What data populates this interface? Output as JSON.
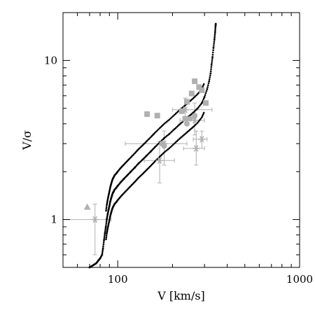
{
  "chart_data": {
    "type": "scatter",
    "title": "",
    "xlabel": "V [km/s]",
    "ylabel": "V/σ",
    "xscale": "log",
    "yscale": "log",
    "xlim": [
      50,
      1000
    ],
    "ylim": [
      0.5,
      20
    ],
    "grid": false,
    "legend": "none",
    "x_tick_labels": [
      {
        "value": 100,
        "label": "100"
      },
      {
        "value": 1000,
        "label": "1000"
      }
    ],
    "y_tick_labels": [
      {
        "value": 1,
        "label": "1"
      },
      {
        "value": 10,
        "label": "10"
      }
    ],
    "colors": {
      "model": "#000000",
      "observed": "#b0b0b0",
      "axes": "#000000"
    },
    "series": [
      {
        "kind": "model-band",
        "marker": "dot",
        "color": "#000000",
        "points": [
          [
            70,
            0.5
          ],
          [
            72,
            0.51
          ],
          [
            74,
            0.52
          ],
          [
            76,
            0.53
          ],
          [
            78,
            0.55
          ],
          [
            80,
            0.57
          ],
          [
            82,
            0.6
          ],
          [
            83,
            0.66
          ],
          [
            84,
            0.74
          ],
          [
            85,
            0.82
          ],
          [
            86,
            0.9
          ],
          [
            87,
            1.0
          ],
          [
            88,
            1.08
          ],
          [
            89,
            1.15
          ],
          [
            90,
            1.22
          ],
          [
            91,
            1.3
          ],
          [
            92,
            1.36
          ],
          [
            93,
            1.42
          ],
          [
            94,
            1.47
          ],
          [
            95,
            1.5
          ],
          [
            96,
            1.54
          ],
          [
            98,
            1.58
          ],
          [
            100,
            1.63
          ],
          [
            104,
            1.72
          ],
          [
            108,
            1.8
          ],
          [
            113,
            1.9
          ],
          [
            118,
            2.0
          ],
          [
            124,
            2.12
          ],
          [
            130,
            2.25
          ],
          [
            137,
            2.38
          ],
          [
            144,
            2.52
          ],
          [
            152,
            2.68
          ],
          [
            160,
            2.85
          ],
          [
            170,
            3.05
          ],
          [
            180,
            3.25
          ],
          [
            192,
            3.45
          ],
          [
            205,
            3.7
          ],
          [
            218,
            3.95
          ],
          [
            232,
            4.2
          ],
          [
            246,
            4.45
          ],
          [
            260,
            4.7
          ],
          [
            275,
            5.0
          ],
          [
            290,
            5.4
          ],
          [
            300,
            5.9
          ],
          [
            310,
            6.6
          ],
          [
            318,
            7.4
          ],
          [
            324,
            8.3
          ],
          [
            328,
            9.4
          ],
          [
            332,
            10.5
          ],
          [
            336,
            12.0
          ],
          [
            340,
            13.5
          ],
          [
            343,
            15.0
          ],
          [
            345,
            16.5
          ],
          [
            346,
            17.0
          ]
        ]
      },
      {
        "kind": "observed",
        "marker": "square",
        "color": "#b0b0b0",
        "points": [
          [
            145,
            4.6
          ],
          [
            165,
            4.5
          ],
          [
            240,
            5.5
          ],
          [
            255,
            6.2
          ],
          [
            265,
            7.4
          ],
          [
            280,
            6.8
          ],
          [
            290,
            6.5
          ],
          [
            305,
            5.4
          ],
          [
            225,
            4.8
          ],
          [
            235,
            4.3
          ]
        ]
      },
      {
        "kind": "observed",
        "marker": "triangle",
        "color": "#b0b0b0",
        "points": [
          [
            68,
            1.2
          ]
        ]
      },
      {
        "kind": "observed",
        "marker": "circle",
        "color": "#b0b0b0",
        "points": [
          [
            175,
            3.0
          ],
          [
            250,
            4.3
          ],
          [
            265,
            4.5
          ],
          [
            240,
            4.0
          ],
          [
            180,
            2.9
          ]
        ]
      },
      {
        "kind": "observed",
        "marker": "star",
        "color": "#b0b0b0",
        "points": [
          {
            "x": 75,
            "y": 1.0,
            "xerr": [
              50,
              92
            ],
            "yerr": [
              0.6,
              1.25
            ]
          },
          {
            "x": 170,
            "y": 2.35,
            "xerr": [
              140,
              205
            ],
            "yerr": [
              1.7,
              3.1
            ]
          },
          {
            "x": 180,
            "y": 3.0,
            "xerr": [
              110,
              240
            ],
            "yerr": [
              2.2,
              3.6
            ]
          },
          {
            "x": 235,
            "y": 4.9,
            "xerr": [
              200,
              330
            ],
            "yerr": [
              4.2,
              5.8
            ]
          },
          {
            "x": 265,
            "y": 4.2,
            "xerr": [
              220,
              300
            ],
            "yerr": [
              3.4,
              5.4
            ]
          },
          {
            "x": 270,
            "y": 2.8,
            "xerr": [
              230,
              300
            ],
            "yerr": [
              2.2,
              3.6
            ]
          },
          {
            "x": 290,
            "y": 3.2,
            "xerr": [
              260,
              310
            ],
            "yerr": [
              2.8,
              3.6
            ]
          }
        ]
      }
    ]
  }
}
